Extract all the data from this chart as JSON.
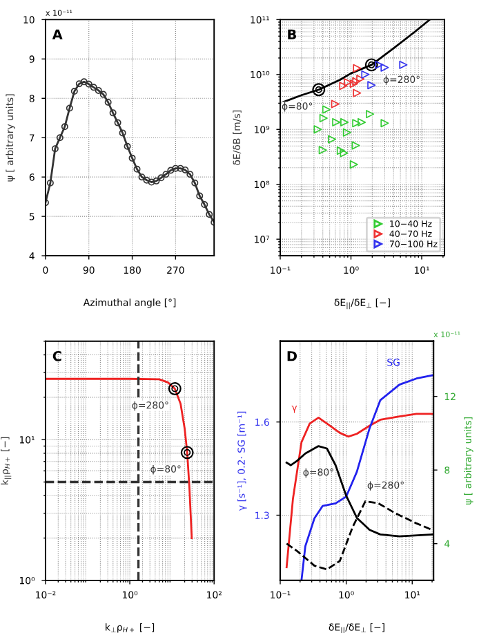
{
  "chart_data": [
    {
      "type": "line",
      "title": "A",
      "xlabel": "Azimuthal angle [°]",
      "ylabel": "ψ [ arbitrary units]",
      "annotations": [
        "x 10⁻¹¹"
      ],
      "x": [
        0,
        10,
        20,
        30,
        40,
        50,
        60,
        70,
        80,
        90,
        100,
        110,
        120,
        130,
        140,
        150,
        160,
        170,
        180,
        190,
        200,
        210,
        220,
        230,
        240,
        250,
        260,
        270,
        280,
        290,
        300,
        310,
        320,
        330,
        340,
        350
      ],
      "series": [
        {
          "color": "#333333",
          "values": [
            5.35,
            5.85,
            6.72,
            7.0,
            7.28,
            7.75,
            8.18,
            8.37,
            8.42,
            8.36,
            8.28,
            8.2,
            8.1,
            7.9,
            7.63,
            7.38,
            7.12,
            6.78,
            6.48,
            6.2,
            6.0,
            5.92,
            5.87,
            5.9,
            5.98,
            6.07,
            6.17,
            6.22,
            6.22,
            6.18,
            6.07,
            5.85,
            5.52,
            5.3,
            5.05,
            4.85
          ]
        }
      ],
      "marker": "circle",
      "xlim": [
        0,
        350
      ],
      "ylim": [
        4,
        10
      ],
      "xticks": [
        0,
        90,
        180,
        270
      ],
      "yticks": [
        4,
        5,
        6,
        7,
        8,
        9,
        10
      ],
      "grid": true
    },
    {
      "type": "scatter",
      "title": "B",
      "xlabel": "δE$_{||}$/δE$_{⊥}$ [−]",
      "ylabel": "δE/δB [m/s]",
      "log": "xy",
      "annotations": [
        {
          "text": "ϕ=80°",
          "x": 0.35,
          "y": 5300000000
        },
        {
          "text": "ϕ=280°",
          "x": 1.95,
          "y": 15000000000
        }
      ],
      "series": [
        {
          "type": "line",
          "color": "#000000",
          "x": [
            0.1,
            0.2,
            0.35,
            0.7,
            1.0,
            1.95,
            4,
            8,
            13
          ],
          "values": [
            3000000000,
            4200000000,
            5300000000,
            8000000000,
            10500000000,
            15000000000,
            30000000000,
            60000000000,
            100000000000
          ]
        },
        {
          "name": "10−40 Hz",
          "marker": "triangle",
          "color": "#33cc33",
          "x": [
            0.45,
            0.41,
            0.34,
            0.4,
            0.54,
            0.62,
            0.72,
            0.8,
            0.81,
            0.88,
            1.19,
            1.17,
            1.42,
            1.1,
            1.86,
            3.0
          ],
          "values": [
            2300000000,
            1600000000,
            1000000000,
            420000000,
            660000000,
            1350000000,
            410000000,
            370000000,
            1350000000,
            880000000,
            1300000000,
            510000000,
            1350000000,
            230000000,
            1900000000,
            1300000000
          ]
        },
        {
          "name": "40−70 Hz",
          "marker": "triangle",
          "color": "#ee3333",
          "x": [
            1.22,
            0.78,
            0.91,
            1.1,
            1.19,
            1.36,
            1.22,
            0.6
          ],
          "values": [
            13000000000,
            6200000000,
            7200000000,
            6800000000,
            7500000000,
            8300000000,
            4600000000,
            2900000000
          ]
        },
        {
          "name": "70−100 Hz",
          "marker": "triangle",
          "color": "#3333ee",
          "x": [
            1.6,
            1.95,
            2.5,
            3.0,
            5.5
          ],
          "values": [
            10000000000,
            6400000000,
            15000000000,
            13400000000,
            15000000000
          ]
        }
      ],
      "legend": "bottom right",
      "grid": true,
      "xlim": [
        0.1,
        21
      ],
      "ylim": [
        5000000,
        100000000000
      ],
      "xticks": [
        {
          "value": 0.1,
          "label": "10⁻¹"
        },
        {
          "value": 1,
          "label": "10⁰"
        },
        {
          "value": 10,
          "label": "10¹"
        }
      ],
      "yticks": [
        {
          "value": 10000000,
          "label": "10⁷"
        },
        {
          "value": 100000000,
          "label": "10⁸"
        },
        {
          "value": 1000000000,
          "label": "10⁹"
        },
        {
          "value": 10000000000,
          "label": "10¹⁰"
        },
        {
          "value": 100000000000,
          "label": "10¹¹"
        }
      ]
    },
    {
      "type": "line",
      "title": "C",
      "xlabel": "k$_{⊥}$ρ$_{H+}$ [−]",
      "ylabel": "k$_{||}$ρ$_{H+}$ [−]",
      "log": "xy",
      "annotations": [
        {
          "text": "ϕ=280°",
          "x": 11.7,
          "y": 23
        },
        {
          "text": "ϕ=80°",
          "x": 23,
          "y": 8.1
        }
      ],
      "x": [
        0.01,
        1,
        5,
        8,
        11.7,
        16,
        20,
        23,
        26,
        29.5
      ],
      "series": [
        {
          "color": "#ee2222",
          "values": [
            27,
            27,
            26.8,
            25.5,
            23,
            18,
            12,
            8.1,
            4.5,
            2.0
          ]
        }
      ],
      "ref_lines": [
        {
          "axis": "x",
          "value": 1.6,
          "label": null,
          "color": "#333333",
          "line_style": "dashed"
        },
        {
          "axis": "y",
          "value": 5,
          "label": null,
          "color": "#333333",
          "line_style": "dashed"
        }
      ],
      "grid": true,
      "xlim": [
        0.01,
        100
      ],
      "ylim": [
        1,
        50
      ],
      "xticks": [
        {
          "value": 0.01,
          "label": "10⁻²"
        },
        {
          "value": 1,
          "label": "10⁰"
        },
        {
          "value": 100,
          "label": "10²"
        }
      ],
      "yticks": [
        {
          "value": 1,
          "label": "10⁰"
        },
        {
          "value": 10,
          "label": "10¹"
        }
      ]
    },
    {
      "type": "line",
      "title": "D",
      "xlabel": "δE$_{||}$/δE$_{⊥}$ [−]",
      "ylabel": "γ [s⁻¹], 0.2· SG [m⁻¹]",
      "y2label": "ψ [ arbitrary units]",
      "log": "x",
      "annotations": [
        "x 10⁻¹¹"
      ],
      "series": [
        {
          "name": "γ",
          "color": "#ee2222",
          "x": [
            0.125,
            0.156,
            0.21,
            0.28,
            0.38,
            0.51,
            0.8,
            1.08,
            1.45,
            2.26,
            3.28,
            6.4,
            11.6,
            20
          ],
          "values": [
            1.133,
            1.353,
            1.535,
            1.595,
            1.614,
            1.595,
            1.565,
            1.553,
            1.562,
            1.588,
            1.607,
            1.618,
            1.626,
            1.626
          ]
        },
        {
          "name": "SG",
          "color": "#2222ee",
          "x": [
            0.21,
            0.24,
            0.33,
            0.44,
            0.69,
            1.0,
            1.45,
            2.26,
            3.28,
            6.4,
            11.6,
            20
          ],
          "values": [
            1.09,
            1.2,
            1.29,
            1.33,
            1.338,
            1.36,
            1.44,
            1.58,
            1.67,
            1.72,
            1.74,
            1.75
          ]
        },
        {
          "name": "ϕ=80°",
          "color": "#000000",
          "axis": "y2",
          "line_style": "solid",
          "x": [
            0.125,
            0.145,
            0.18,
            0.24,
            0.38,
            0.51,
            0.69,
            1.0,
            1.45,
            2.26,
            3.28,
            6.4,
            20
          ],
          "values": [
            8.4,
            8.26,
            8.5,
            8.9,
            9.3,
            9.17,
            8.26,
            6.6,
            5.4,
            4.75,
            4.5,
            4.4,
            4.5
          ]
        },
        {
          "name": "ϕ=280°",
          "color": "#000000",
          "axis": "y2",
          "line_style": "dashed",
          "x": [
            0.125,
            0.18,
            0.33,
            0.51,
            0.8,
            1.25,
            1.95,
            3.05,
            5.5,
            11.6,
            20
          ],
          "values": [
            4.0,
            3.6,
            2.8,
            2.6,
            3.06,
            4.9,
            6.3,
            6.2,
            5.66,
            5.1,
            4.75
          ]
        }
      ],
      "grid": true,
      "xlim": [
        0.1,
        21
      ],
      "ylim": [
        1.09,
        1.86
      ],
      "y2lim": [
        2,
        15
      ],
      "xticks": [
        {
          "value": 0.1,
          "label": "10⁻¹"
        },
        {
          "value": 1,
          "label": "10⁰"
        },
        {
          "value": 10,
          "label": "10¹"
        }
      ],
      "yticks": [
        1.3,
        1.6
      ],
      "y2ticks": [
        4,
        8,
        12
      ]
    }
  ]
}
